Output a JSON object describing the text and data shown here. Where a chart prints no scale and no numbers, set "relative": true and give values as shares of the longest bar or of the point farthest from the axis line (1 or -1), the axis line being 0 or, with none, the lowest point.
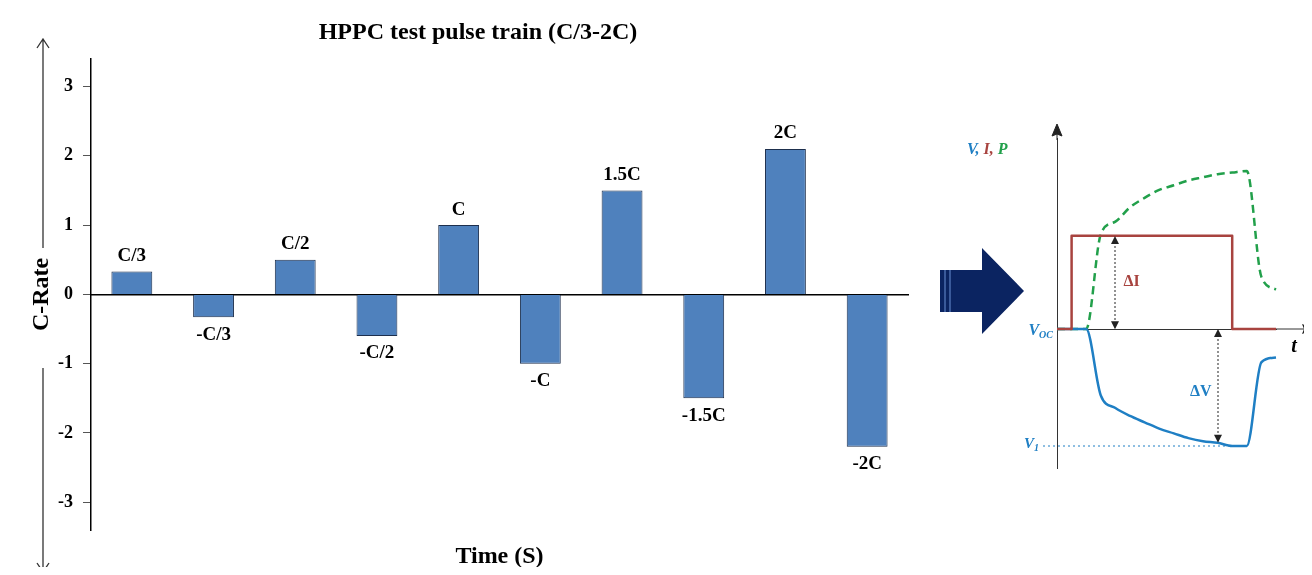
{
  "chart_data": [
    {
      "type": "bar",
      "title": "HPPC test pulse train (C/3-2C)",
      "xlabel": "Time (S)",
      "ylabel": "C-Rate",
      "categories": [
        "C/3",
        "-C/3",
        "C/2",
        "-C/2",
        "C",
        "-C",
        "1.5C",
        "-1.5C",
        "2C",
        "-2C"
      ],
      "values": [
        0.33,
        -0.33,
        0.5,
        -0.6,
        1,
        -1,
        1.5,
        -1.5,
        2.1,
        -2.2
      ],
      "color": "#4f81bd",
      "ylim": [
        -3.4,
        3.4
      ],
      "yticks": [
        -3,
        -2,
        -1,
        0,
        1,
        2,
        3
      ]
    },
    {
      "type": "line",
      "relative": true,
      "tick_labels": false,
      "xlabel": "t",
      "ylabel": "V, I, P",
      "categories": [
        null,
        null,
        null,
        null,
        null,
        null,
        null,
        null,
        null,
        null,
        null,
        null,
        null,
        null,
        null,
        null
      ],
      "series": [
        {
          "type": "step",
          "color": "#a8433f",
          "values": [
            0,
            0,
            0.59,
            0.59,
            0.59,
            0.59,
            0.59,
            0.59,
            0.59,
            0.59,
            0.59,
            0.59,
            0.59,
            0,
            0,
            0
          ]
        },
        {
          "type": "line",
          "color": "#1f7fc4",
          "values": [
            0,
            0,
            0,
            -0.42,
            -0.5,
            -0.55,
            -0.59,
            -0.63,
            -0.66,
            -0.69,
            -0.71,
            -0.72,
            -0.74,
            -0.74,
            -0.21,
            -0.18
          ]
        },
        {
          "type": "line",
          "color": "#22a04b",
          "line_style": "dashed",
          "values": [
            0,
            0,
            0,
            0.6,
            0.68,
            0.77,
            0.83,
            0.88,
            0.91,
            0.94,
            0.96,
            0.98,
            0.99,
            1,
            0.33,
            0.25
          ]
        }
      ],
      "ref_lines": [
        {
          "axis": "y",
          "value": -0.74,
          "label": "V$_{1}$",
          "color": "#1f7fc4",
          "line_style": "dotted"
        }
      ],
      "annotations": [
        "ΔI",
        "ΔV",
        "V$_{OC}$"
      ]
    }
  ]
}
